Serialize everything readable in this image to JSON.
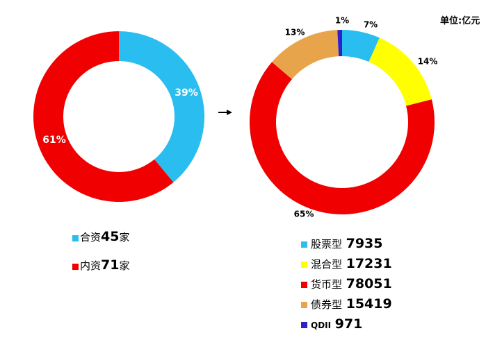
{
  "unit_label": "单位:亿元",
  "colors": {
    "cyan": "#2abdf0",
    "red": "#f00000",
    "yellow": "#ffff00",
    "orange": "#e8a44a",
    "blue": "#2d22c8"
  },
  "chart_data": [
    {
      "type": "pie",
      "slices": [
        {
          "label": "39%",
          "value": 39,
          "color": "#2abdf0"
        },
        {
          "label": "61%",
          "value": 61,
          "color": "#f00000"
        }
      ],
      "legend": [
        {
          "name": "合资",
          "value": "45",
          "unit": "家",
          "color": "#2abdf0"
        },
        {
          "name": "内资",
          "value": "71",
          "unit": "家",
          "color": "#f00000"
        }
      ]
    },
    {
      "type": "pie",
      "unit": "单位:亿元",
      "slices": [
        {
          "label": "7%",
          "value": 7935,
          "color": "#2abdf0"
        },
        {
          "label": "14%",
          "value": 17231,
          "color": "#ffff00"
        },
        {
          "label": "65%",
          "value": 78051,
          "color": "#f00000"
        },
        {
          "label": "13%",
          "value": 15419,
          "color": "#e8a44a"
        },
        {
          "label": "1%",
          "value": 971,
          "color": "#2d22c8"
        }
      ],
      "legend": [
        {
          "name": "股票型",
          "value": "7935",
          "color": "#2abdf0"
        },
        {
          "name": "混合型",
          "value": "17231",
          "color": "#ffff00"
        },
        {
          "name": "货币型",
          "value": "78051",
          "color": "#f00000"
        },
        {
          "name": "债券型",
          "value": "15419",
          "color": "#e8a44a"
        },
        {
          "name": "QDII",
          "value": "971",
          "color": "#2d22c8"
        }
      ]
    }
  ]
}
